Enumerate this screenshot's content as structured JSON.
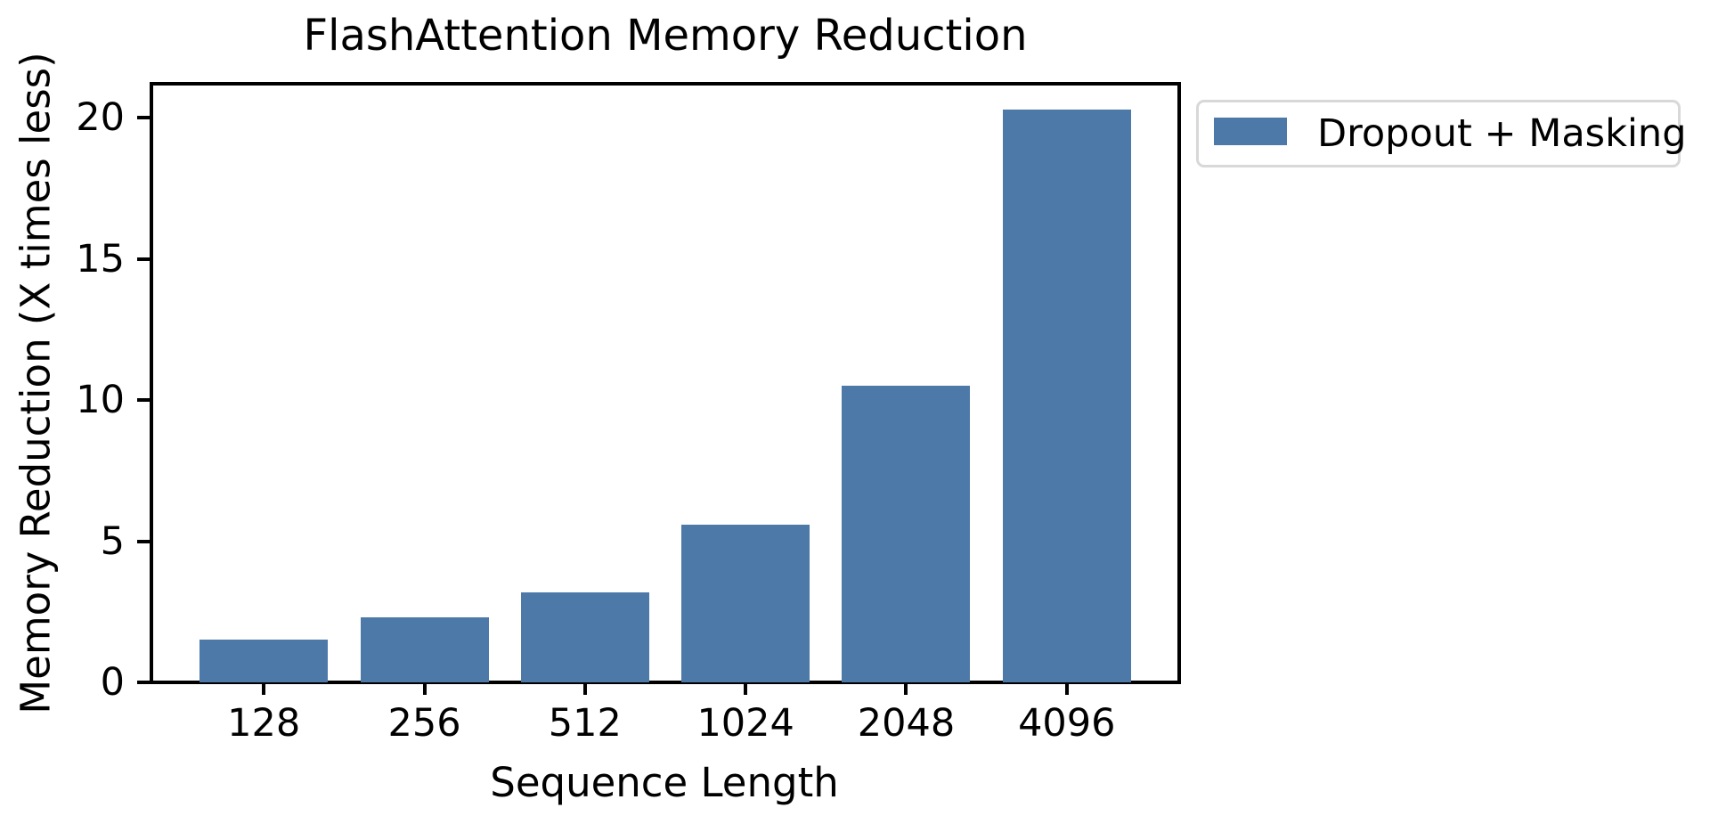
{
  "chart_data": {
    "type": "bar",
    "title": "FlashAttention Memory Reduction",
    "xlabel": "Sequence Length",
    "ylabel": "Memory Reduction (X times less)",
    "categories": [
      "128",
      "256",
      "512",
      "1024",
      "2048",
      "4096"
    ],
    "values": [
      1.5,
      2.3,
      3.2,
      5.6,
      10.5,
      20.3
    ],
    "series": [
      {
        "name": "Dropout + Masking",
        "values": [
          1.5,
          2.3,
          3.2,
          5.6,
          10.5,
          20.3
        ]
      }
    ],
    "yticks": [
      0,
      5,
      10,
      15,
      20
    ],
    "ytick_labels": [
      "0",
      "5",
      "10",
      "15",
      "20"
    ],
    "ylim": [
      0,
      21.2
    ],
    "grid": false,
    "bar_color": "#4d79a8",
    "text_color": "#000000",
    "legend": {
      "label": "Dropout + Masking",
      "position": "outside-upper-right",
      "border_color": "#d8d8d8"
    }
  }
}
